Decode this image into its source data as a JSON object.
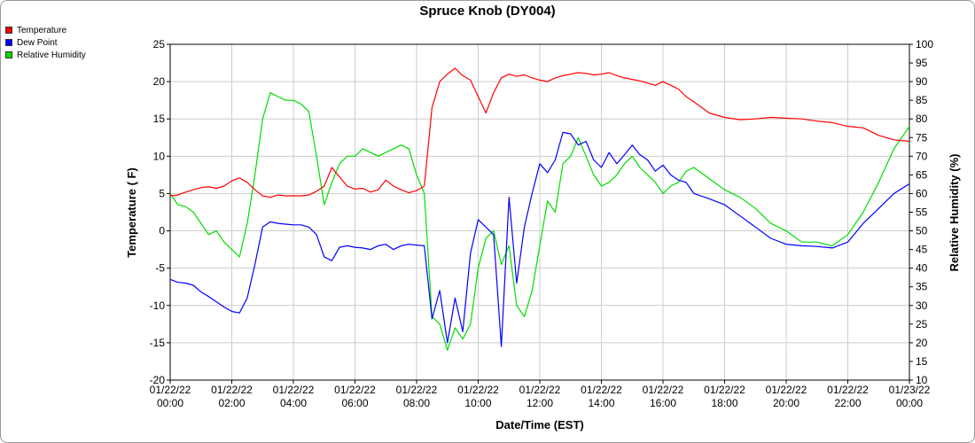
{
  "chart_data": {
    "type": "line",
    "title": "Spruce Knob (DY004)",
    "xlabel": "Date/Time (EST)",
    "ylabel_left": "Temperature ( F)",
    "ylabel_right": "Relative Humidity (%)",
    "ylim_left": [
      -20,
      25
    ],
    "ylim_right": [
      10,
      100
    ],
    "yticks_left": [
      "25",
      "20",
      "15",
      "10",
      "5",
      "0",
      "-5",
      "-10",
      "-15",
      "-20"
    ],
    "yticks_right": [
      "100",
      "95",
      "90",
      "85",
      "80",
      "75",
      "70",
      "65",
      "60",
      "55",
      "50",
      "45",
      "40",
      "35",
      "30",
      "25",
      "20",
      "15",
      "10"
    ],
    "xticks": [
      {
        "date": "01/22/22",
        "time": "00:00"
      },
      {
        "date": "01/22/22",
        "time": "02:00"
      },
      {
        "date": "01/22/22",
        "time": "04:00"
      },
      {
        "date": "01/22/22",
        "time": "06:00"
      },
      {
        "date": "01/22/22",
        "time": "08:00"
      },
      {
        "date": "01/22/22",
        "time": "10:00"
      },
      {
        "date": "01/22/22",
        "time": "12:00"
      },
      {
        "date": "01/22/22",
        "time": "14:00"
      },
      {
        "date": "01/22/22",
        "time": "16:00"
      },
      {
        "date": "01/22/22",
        "time": "18:00"
      },
      {
        "date": "01/22/22",
        "time": "20:00"
      },
      {
        "date": "01/22/22",
        "time": "22:00"
      },
      {
        "date": "01/23/22",
        "time": "00:00"
      }
    ],
    "grid": true,
    "legend_position": "top-left",
    "series": [
      {
        "name": "Temperature",
        "axis": "left",
        "color": "#ff0000",
        "x_hours": [
          0,
          0.25,
          0.5,
          0.75,
          1,
          1.25,
          1.5,
          1.75,
          2,
          2.25,
          2.5,
          2.75,
          3,
          3.25,
          3.5,
          3.75,
          4,
          4.25,
          4.5,
          4.75,
          5,
          5.25,
          5.5,
          5.75,
          6,
          6.25,
          6.5,
          6.75,
          7,
          7.25,
          7.5,
          7.75,
          8,
          8.25,
          8.5,
          8.75,
          9,
          9.25,
          9.5,
          9.75,
          10,
          10.25,
          10.5,
          10.75,
          11,
          11.25,
          11.5,
          11.75,
          12,
          12.25,
          12.5,
          12.75,
          13,
          13.25,
          13.5,
          13.75,
          14,
          14.25,
          14.5,
          14.75,
          15,
          15.25,
          15.5,
          15.75,
          16,
          16.25,
          16.5,
          16.75,
          17,
          17.5,
          18,
          18.5,
          19,
          19.5,
          20,
          20.5,
          21,
          21.5,
          22,
          22.5,
          23,
          23.5,
          24
        ],
        "values": [
          4.7,
          4.8,
          5.2,
          5.5,
          5.8,
          5.9,
          5.7,
          6.0,
          6.7,
          7.1,
          6.5,
          5.5,
          4.7,
          4.5,
          4.8,
          4.7,
          4.7,
          4.7,
          4.8,
          5.3,
          6.0,
          8.5,
          7.2,
          6.0,
          5.6,
          5.7,
          5.2,
          5.5,
          6.8,
          6.0,
          5.5,
          5.1,
          5.4,
          6.0,
          16.5,
          20.0,
          21.0,
          21.8,
          20.8,
          20.2,
          18.0,
          15.8,
          18.5,
          20.5,
          21.0,
          20.7,
          20.9,
          20.5,
          20.2,
          20.0,
          20.5,
          20.8,
          21.0,
          21.2,
          21.1,
          20.9,
          21.0,
          21.2,
          20.8,
          20.5,
          20.3,
          20.1,
          19.8,
          19.5,
          20.0,
          19.5,
          19.0,
          18.0,
          17.3,
          15.8,
          15.2,
          14.9,
          15.0,
          15.2,
          15.1,
          15.0,
          14.7,
          14.5,
          14.0,
          13.8,
          12.8,
          12.2,
          12.0
        ]
      },
      {
        "name": "Dew Point",
        "axis": "left",
        "color": "#0000ff",
        "x_hours": [
          0,
          0.25,
          0.5,
          0.75,
          1,
          1.25,
          1.5,
          1.75,
          2,
          2.25,
          2.5,
          2.75,
          3,
          3.25,
          3.5,
          3.75,
          4,
          4.25,
          4.5,
          4.75,
          5,
          5.25,
          5.5,
          5.75,
          6,
          6.25,
          6.5,
          6.75,
          7,
          7.25,
          7.5,
          7.75,
          8,
          8.25,
          8.5,
          8.75,
          9,
          9.25,
          9.5,
          9.75,
          10,
          10.25,
          10.5,
          10.75,
          11,
          11.25,
          11.5,
          11.75,
          12,
          12.25,
          12.5,
          12.75,
          13,
          13.25,
          13.5,
          13.75,
          14,
          14.25,
          14.5,
          14.75,
          15,
          15.25,
          15.5,
          15.75,
          16,
          16.25,
          16.5,
          16.75,
          17,
          17.5,
          18,
          18.5,
          19,
          19.5,
          20,
          20.5,
          21,
          21.5,
          22,
          22.5,
          23,
          23.5,
          24
        ],
        "values": [
          -6.5,
          -6.9,
          -7.0,
          -7.3,
          -8.2,
          -8.8,
          -9.5,
          -10.2,
          -10.8,
          -11.0,
          -9.0,
          -4.5,
          0.5,
          1.2,
          1.0,
          0.9,
          0.8,
          0.8,
          0.5,
          -0.5,
          -3.5,
          -4.0,
          -2.2,
          -2.0,
          -2.2,
          -2.3,
          -2.5,
          -2.0,
          -1.8,
          -2.5,
          -2.0,
          -1.8,
          -1.9,
          -2.0,
          -11.8,
          -8.0,
          -15.0,
          -9.0,
          -13.5,
          -3.0,
          1.5,
          0.5,
          -0.5,
          -15.5,
          4.5,
          -7.0,
          0.5,
          5.0,
          9.0,
          7.8,
          9.5,
          13.2,
          13.0,
          11.5,
          12.0,
          9.5,
          8.5,
          10.5,
          9.0,
          10.2,
          11.5,
          10.2,
          9.5,
          8.0,
          8.8,
          7.5,
          6.8,
          6.5,
          5.0,
          4.3,
          3.5,
          2.0,
          0.5,
          -1.0,
          -1.8,
          -2.0,
          -2.1,
          -2.3,
          -1.5,
          1.0,
          3.0,
          5.0,
          6.3
        ]
      },
      {
        "name": "Relative Humidity",
        "axis": "right",
        "color": "#00dd00",
        "x_hours": [
          0,
          0.25,
          0.5,
          0.75,
          1,
          1.25,
          1.5,
          1.75,
          2,
          2.25,
          2.5,
          2.75,
          3,
          3.25,
          3.5,
          3.75,
          4,
          4.25,
          4.5,
          4.75,
          5,
          5.25,
          5.5,
          5.75,
          6,
          6.25,
          6.5,
          6.75,
          7,
          7.25,
          7.5,
          7.75,
          8,
          8.25,
          8.5,
          8.75,
          9,
          9.25,
          9.5,
          9.75,
          10,
          10.25,
          10.5,
          10.75,
          11,
          11.25,
          11.5,
          11.75,
          12,
          12.25,
          12.5,
          12.75,
          13,
          13.25,
          13.5,
          13.75,
          14,
          14.25,
          14.5,
          14.75,
          15,
          15.25,
          15.5,
          15.75,
          16,
          16.25,
          16.5,
          16.75,
          17,
          17.5,
          18,
          18.5,
          19,
          19.5,
          20,
          20.5,
          21,
          21.5,
          22,
          22.5,
          23,
          23.5,
          24
        ],
        "values": [
          60,
          57,
          56.5,
          55,
          52,
          49,
          50,
          47,
          45,
          43,
          52,
          65,
          80,
          87,
          86,
          85,
          85,
          84,
          82,
          70,
          57,
          63,
          68,
          70,
          70,
          72,
          71,
          70,
          71,
          72,
          73,
          72,
          65,
          60,
          27,
          25,
          18,
          24,
          21,
          25,
          40,
          48,
          50,
          41,
          46,
          30,
          27,
          34,
          46,
          58,
          55,
          68,
          70,
          75,
          70,
          65,
          62,
          63,
          65,
          68,
          70,
          67,
          65,
          63,
          60,
          62,
          63,
          66,
          67,
          64,
          61,
          59,
          56,
          52,
          50,
          47,
          47,
          46,
          49,
          55,
          63,
          72,
          78
        ]
      }
    ]
  }
}
